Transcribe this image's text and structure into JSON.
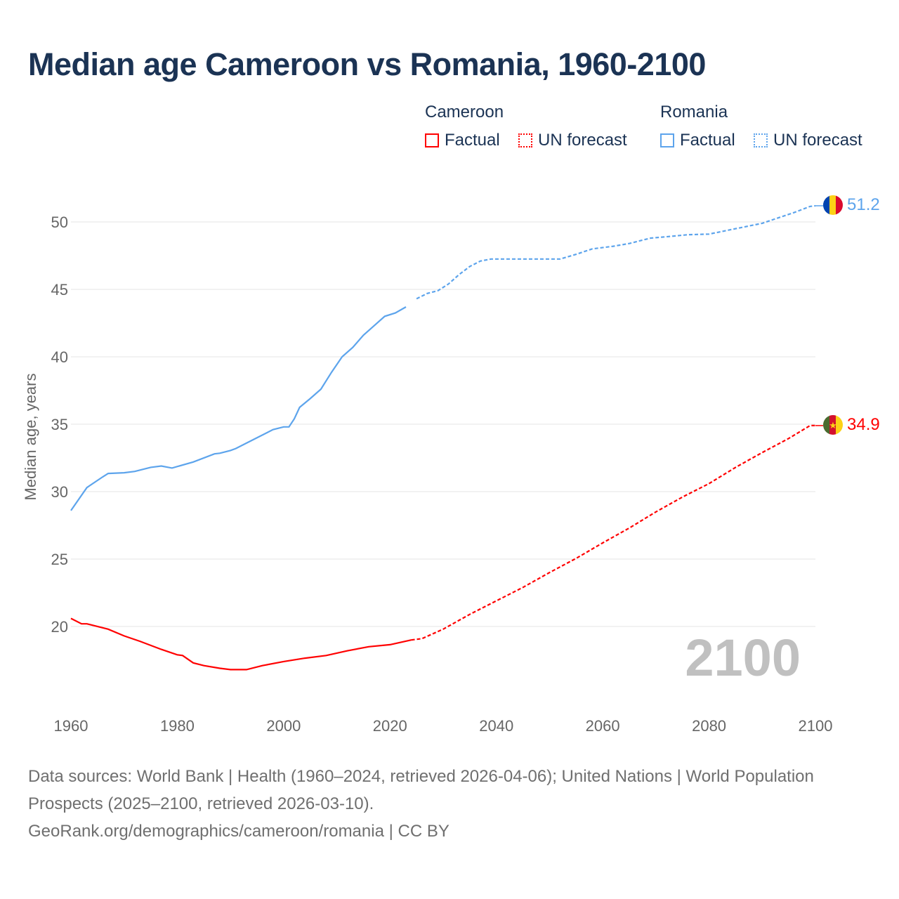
{
  "title": "Median age Cameroon vs Romania, 1960-2100",
  "legend": {
    "groups": [
      {
        "country": "Cameroon",
        "factual": "Factual",
        "forecast": "UN forecast",
        "color": "#ff0000"
      },
      {
        "country": "Romania",
        "factual": "Factual",
        "forecast": "UN forecast",
        "color": "#5da4ec"
      }
    ]
  },
  "year_watermark": "2100",
  "footer": {
    "sources": "Data sources: World Bank | Health (1960–2024, retrieved 2026-04-06); United Nations | World Population Prospects (2025–2100, retrieved 2026-03-10).",
    "link": "GeoRank.org/demographics/cameroon/romania | CC BY"
  },
  "chart_data": {
    "type": "line",
    "title": "Median age Cameroon vs Romania, 1960-2100",
    "xlabel": "",
    "ylabel": "Median age, years",
    "xlim": [
      1960,
      2100
    ],
    "ylim": [
      13.8,
      52.5
    ],
    "xticks": [
      1960,
      1980,
      2000,
      2020,
      2040,
      2060,
      2080,
      2100
    ],
    "yticks": [
      20,
      25,
      30,
      35,
      40,
      45,
      50
    ],
    "grid": true,
    "forecast_start": 2024,
    "series": [
      {
        "name": "Romania",
        "color": "#5da4ec",
        "end_label": "51.2",
        "x": [
          1960,
          1963,
          1966,
          1967,
          1970,
          1972,
          1975,
          1977,
          1979,
          1983,
          1987,
          1988,
          1990,
          1991,
          1993,
          1998,
          2000,
          2001,
          2002,
          2003,
          2005,
          2007,
          2009,
          2011,
          2013,
          2015,
          2017,
          2019,
          2021,
          2023,
          2025,
          2027,
          2029,
          2031,
          2033,
          2035,
          2037,
          2039,
          2045,
          2052,
          2055,
          2058,
          2062,
          2065,
          2069,
          2072,
          2076,
          2080,
          2085,
          2090,
          2093,
          2096,
          2099,
          2100
        ],
        "y": [
          28.6,
          30.3,
          31.1,
          31.35,
          31.4,
          31.5,
          31.8,
          31.9,
          31.75,
          32.2,
          32.8,
          32.85,
          33.05,
          33.2,
          33.6,
          34.6,
          34.8,
          34.8,
          35.4,
          36.25,
          36.9,
          37.6,
          38.85,
          40.0,
          40.7,
          41.6,
          42.3,
          43.0,
          43.25,
          43.7,
          44.3,
          44.7,
          44.9,
          45.4,
          46.1,
          46.7,
          47.1,
          47.25,
          47.25,
          47.25,
          47.6,
          48.0,
          48.2,
          48.4,
          48.8,
          48.9,
          49.05,
          49.1,
          49.5,
          49.9,
          50.3,
          50.7,
          51.15,
          51.2
        ]
      },
      {
        "name": "Cameroon",
        "color": "#ff0000",
        "end_label": "34.9",
        "x": [
          1960,
          1962,
          1963,
          1967,
          1970,
          1973,
          1977,
          1980,
          1981,
          1983,
          1985,
          1988,
          1990,
          1993,
          1996,
          2000,
          2004,
          2008,
          2012,
          2016,
          2020,
          2024,
          2026,
          2030,
          2035,
          2040,
          2045,
          2050,
          2055,
          2060,
          2065,
          2070,
          2075,
          2080,
          2085,
          2090,
          2095,
          2099,
          2100
        ],
        "y": [
          20.6,
          20.2,
          20.2,
          19.8,
          19.3,
          18.9,
          18.3,
          17.9,
          17.85,
          17.3,
          17.1,
          16.9,
          16.8,
          16.8,
          17.1,
          17.4,
          17.65,
          17.85,
          18.2,
          18.5,
          18.65,
          19.0,
          19.1,
          19.8,
          20.9,
          21.9,
          22.9,
          24.0,
          25.05,
          26.2,
          27.3,
          28.5,
          29.6,
          30.6,
          31.8,
          32.9,
          33.95,
          34.9,
          34.9
        ]
      }
    ]
  }
}
